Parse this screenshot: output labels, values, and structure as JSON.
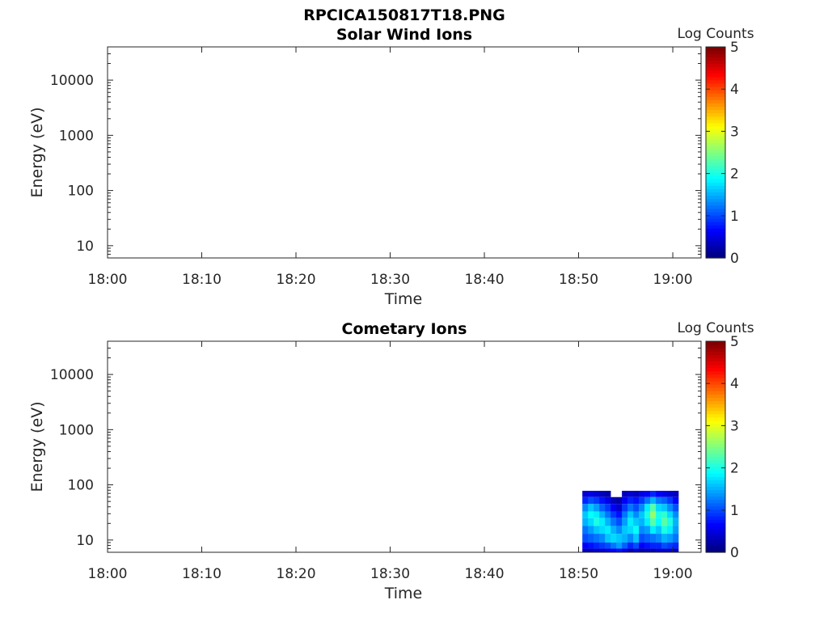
{
  "figure_title": "RPCICA150817T18.PNG",
  "colors": {
    "axis": "#262626",
    "background": "#ffffff"
  },
  "chart_data": [
    {
      "type": "heatmap",
      "title": "Solar Wind Ions",
      "xlabel": "Time",
      "ylabel": "Energy (eV)",
      "x_ticks": [
        "18:00",
        "18:10",
        "18:20",
        "18:30",
        "18:40",
        "18:50",
        "19:00"
      ],
      "xlim_minutes": [
        0,
        63
      ],
      "y_scale": "log",
      "ylim": [
        6,
        40000
      ],
      "y_ticks": [
        10,
        100,
        1000,
        10000
      ],
      "y_tick_labels": [
        "10",
        "100",
        "1000",
        "10000"
      ],
      "colorbar": {
        "label": "Log Counts",
        "range": [
          0,
          5
        ],
        "ticks": [
          "0",
          "1",
          "2",
          "3",
          "4",
          "5"
        ],
        "colormap": "jet"
      },
      "data": []
    },
    {
      "type": "heatmap",
      "title": "Cometary Ions",
      "xlabel": "Time",
      "ylabel": "Energy (eV)",
      "x_ticks": [
        "18:00",
        "18:10",
        "18:20",
        "18:30",
        "18:40",
        "18:50",
        "19:00"
      ],
      "xlim_minutes": [
        0,
        63
      ],
      "y_scale": "log",
      "ylim": [
        6,
        40000
      ],
      "y_ticks": [
        10,
        100,
        1000,
        10000
      ],
      "y_tick_labels": [
        "10",
        "100",
        "1000",
        "10000"
      ],
      "colorbar": {
        "label": "Log Counts",
        "range": [
          0,
          5
        ],
        "ticks": [
          "0",
          "1",
          "2",
          "3",
          "4",
          "5"
        ],
        "colormap": "jet"
      },
      "data": [
        {
          "minute": 50.4,
          "energies": [
            78,
            60,
            45,
            33,
            25,
            18,
            13,
            9,
            7
          ],
          "log_counts": [
            0.4,
            0.8,
            1.3,
            1.6,
            1.5,
            1.2,
            1.0,
            0.6,
            0.3
          ]
        },
        {
          "minute": 51.0,
          "energies": [
            78,
            60,
            45,
            33,
            25,
            18,
            13,
            9,
            7
          ],
          "log_counts": [
            0.5,
            1.0,
            1.6,
            1.9,
            1.7,
            1.4,
            1.1,
            0.7,
            0.3
          ]
        },
        {
          "minute": 51.6,
          "energies": [
            78,
            60,
            45,
            33,
            25,
            18,
            13,
            9,
            7
          ],
          "log_counts": [
            0.4,
            0.9,
            1.4,
            1.8,
            2.0,
            1.6,
            1.2,
            0.8,
            0.4
          ]
        },
        {
          "minute": 52.2,
          "energies": [
            78,
            60,
            45,
            33,
            25,
            18,
            13,
            9,
            7
          ],
          "log_counts": [
            0.3,
            0.7,
            1.1,
            1.5,
            1.8,
            1.7,
            1.3,
            0.9,
            0.4
          ]
        },
        {
          "minute": 52.8,
          "energies": [
            78,
            60,
            45,
            33,
            25,
            18,
            13,
            9,
            7
          ],
          "log_counts": [
            0.2,
            0.5,
            0.9,
            1.2,
            1.5,
            1.8,
            1.6,
            1.0,
            0.5
          ]
        },
        {
          "minute": 53.4,
          "energies": [
            78,
            60,
            45,
            33,
            25,
            18,
            13,
            9,
            7
          ],
          "log_counts": [
            0.0,
            0.3,
            0.6,
            0.9,
            1.2,
            1.5,
            1.7,
            1.2,
            0.6
          ]
        },
        {
          "minute": 54.0,
          "energies": [
            78,
            60,
            45,
            33,
            25,
            18,
            13,
            9,
            7
          ],
          "log_counts": [
            0.0,
            0.2,
            0.4,
            0.7,
            1.0,
            1.3,
            1.6,
            1.4,
            0.7
          ]
        },
        {
          "minute": 54.6,
          "energies": [
            78,
            60,
            45,
            33,
            25,
            18,
            13,
            9,
            7
          ],
          "log_counts": [
            0.3,
            0.6,
            0.9,
            1.2,
            1.4,
            1.6,
            1.5,
            1.1,
            0.5
          ]
        },
        {
          "minute": 55.2,
          "energies": [
            78,
            60,
            45,
            33,
            25,
            18,
            13,
            9,
            7
          ],
          "log_counts": [
            0.4,
            0.8,
            1.2,
            1.6,
            1.8,
            1.7,
            1.3,
            0.8,
            0.3
          ]
        },
        {
          "minute": 55.8,
          "energies": [
            78,
            60,
            45,
            33,
            25,
            18,
            13,
            9,
            7
          ],
          "log_counts": [
            0.3,
            0.7,
            1.0,
            1.3,
            1.6,
            1.9,
            1.6,
            1.0,
            0.4
          ]
        },
        {
          "minute": 56.4,
          "energies": [
            78,
            60,
            45,
            33,
            25,
            18,
            13,
            9,
            7
          ],
          "log_counts": [
            0.5,
            0.9,
            1.3,
            1.6,
            1.5,
            1.3,
            1.0,
            0.6,
            0.2
          ]
        },
        {
          "minute": 57.0,
          "energies": [
            78,
            60,
            45,
            33,
            25,
            18,
            13,
            9,
            7
          ],
          "log_counts": [
            0.6,
            1.2,
            1.8,
            2.0,
            1.8,
            1.4,
            1.1,
            0.7,
            0.3
          ]
        },
        {
          "minute": 57.6,
          "energies": [
            78,
            60,
            45,
            33,
            25,
            18,
            13,
            9,
            7
          ],
          "log_counts": [
            0.8,
            1.5,
            2.3,
            2.6,
            2.3,
            1.8,
            1.2,
            0.8,
            0.3
          ]
        },
        {
          "minute": 58.2,
          "energies": [
            78,
            60,
            45,
            33,
            25,
            18,
            13,
            9,
            7
          ],
          "log_counts": [
            0.6,
            1.2,
            1.7,
            2.0,
            1.9,
            1.6,
            1.3,
            0.8,
            0.4
          ]
        },
        {
          "minute": 58.8,
          "energies": [
            78,
            60,
            45,
            33,
            25,
            18,
            13,
            9,
            7
          ],
          "log_counts": [
            0.5,
            1.1,
            1.6,
            2.1,
            2.3,
            2.0,
            1.5,
            1.0,
            0.4
          ]
        },
        {
          "minute": 59.4,
          "energies": [
            78,
            60,
            45,
            33,
            25,
            18,
            13,
            9,
            7
          ],
          "log_counts": [
            0.4,
            0.9,
            1.3,
            1.7,
            2.0,
            1.8,
            1.4,
            0.9,
            0.4
          ]
        },
        {
          "minute": 60.0,
          "energies": [
            78,
            60,
            45,
            33,
            25,
            18,
            13,
            9,
            7
          ],
          "log_counts": [
            0.3,
            0.6,
            1.0,
            1.3,
            1.5,
            1.4,
            1.2,
            0.8,
            0.3
          ]
        }
      ]
    }
  ]
}
